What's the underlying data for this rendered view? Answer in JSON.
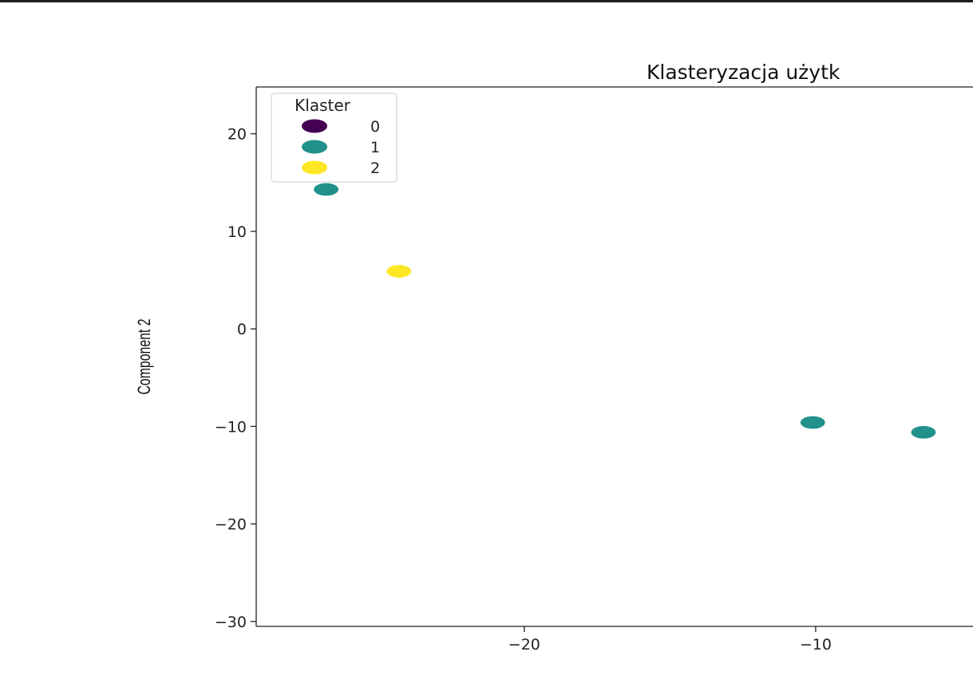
{
  "chart_data": {
    "type": "scatter",
    "title": "Klasteryzacja użytk",
    "xlabel": "",
    "ylabel": "Component 2",
    "xlim": [
      -29.2,
      -4.6
    ],
    "ylim": [
      -30.5,
      24.8
    ],
    "xticks": [
      -20,
      -10
    ],
    "xtick_labels": [
      "−20",
      "−10"
    ],
    "yticks": [
      20,
      10,
      0,
      -10,
      -20,
      -30
    ],
    "ytick_labels": [
      "20",
      "10",
      "0",
      "−10",
      "−20",
      "−30"
    ],
    "grid": false,
    "legend": {
      "title": "Klaster",
      "position": "top-left",
      "entries": [
        {
          "label": "0",
          "color": "#440154"
        },
        {
          "label": "1",
          "color": "#21918c"
        },
        {
          "label": "2",
          "color": "#fde725"
        }
      ]
    },
    "series": [
      {
        "name": "0",
        "color": "#440154",
        "points": []
      },
      {
        "name": "1",
        "color": "#21918c",
        "points": [
          {
            "x": -26.8,
            "y": 14.3
          },
          {
            "x": -10.1,
            "y": -9.6
          },
          {
            "x": -6.3,
            "y": -10.6
          }
        ]
      },
      {
        "name": "2",
        "color": "#fde725",
        "points": [
          {
            "x": -24.3,
            "y": 5.9
          }
        ]
      }
    ]
  }
}
